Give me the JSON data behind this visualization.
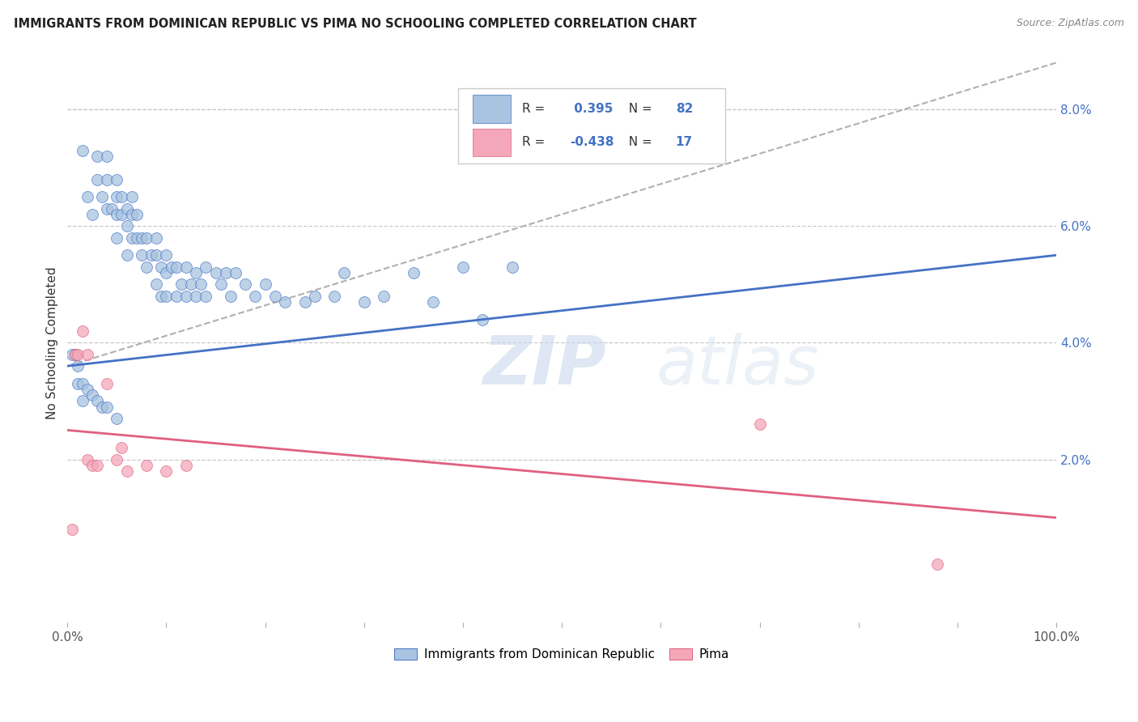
{
  "title": "IMMIGRANTS FROM DOMINICAN REPUBLIC VS PIMA NO SCHOOLING COMPLETED CORRELATION CHART",
  "source": "Source: ZipAtlas.com",
  "ylabel": "No Schooling Completed",
  "ylabel_right_ticks": [
    "2.0%",
    "4.0%",
    "6.0%",
    "8.0%"
  ],
  "ylabel_right_vals": [
    0.02,
    0.04,
    0.06,
    0.08
  ],
  "xlim": [
    0.0,
    1.0
  ],
  "ylim": [
    -0.008,
    0.088
  ],
  "blue_R": 0.395,
  "blue_N": 82,
  "pink_R": -0.438,
  "pink_N": 17,
  "blue_color": "#a8c4e0",
  "pink_color": "#f4a7b9",
  "blue_line_color": "#4472c4",
  "pink_line_color": "#e06080",
  "dashed_line_color": "#b0b0b0",
  "watermark_zip": "ZIP",
  "watermark_atlas": "atlas",
  "blue_scatter_x": [
    0.015,
    0.02,
    0.025,
    0.03,
    0.03,
    0.035,
    0.04,
    0.04,
    0.04,
    0.045,
    0.05,
    0.05,
    0.05,
    0.05,
    0.055,
    0.055,
    0.06,
    0.06,
    0.06,
    0.065,
    0.065,
    0.065,
    0.07,
    0.07,
    0.075,
    0.075,
    0.08,
    0.08,
    0.085,
    0.09,
    0.09,
    0.09,
    0.095,
    0.095,
    0.1,
    0.1,
    0.1,
    0.105,
    0.11,
    0.11,
    0.115,
    0.12,
    0.12,
    0.125,
    0.13,
    0.13,
    0.135,
    0.14,
    0.14,
    0.15,
    0.155,
    0.16,
    0.165,
    0.17,
    0.18,
    0.19,
    0.2,
    0.21,
    0.22,
    0.24,
    0.25,
    0.27,
    0.28,
    0.3,
    0.32,
    0.35,
    0.37,
    0.4,
    0.42,
    0.45,
    0.005,
    0.008,
    0.01,
    0.01,
    0.015,
    0.015,
    0.02,
    0.025,
    0.03,
    0.035,
    0.04,
    0.05
  ],
  "blue_scatter_y": [
    0.073,
    0.065,
    0.062,
    0.072,
    0.068,
    0.065,
    0.072,
    0.068,
    0.063,
    0.063,
    0.068,
    0.065,
    0.062,
    0.058,
    0.065,
    0.062,
    0.063,
    0.06,
    0.055,
    0.065,
    0.062,
    0.058,
    0.062,
    0.058,
    0.058,
    0.055,
    0.058,
    0.053,
    0.055,
    0.058,
    0.055,
    0.05,
    0.053,
    0.048,
    0.055,
    0.052,
    0.048,
    0.053,
    0.053,
    0.048,
    0.05,
    0.053,
    0.048,
    0.05,
    0.052,
    0.048,
    0.05,
    0.053,
    0.048,
    0.052,
    0.05,
    0.052,
    0.048,
    0.052,
    0.05,
    0.048,
    0.05,
    0.048,
    0.047,
    0.047,
    0.048,
    0.048,
    0.052,
    0.047,
    0.048,
    0.052,
    0.047,
    0.053,
    0.044,
    0.053,
    0.038,
    0.038,
    0.036,
    0.033,
    0.033,
    0.03,
    0.032,
    0.031,
    0.03,
    0.029,
    0.029,
    0.027
  ],
  "pink_scatter_x": [
    0.005,
    0.008,
    0.01,
    0.015,
    0.02,
    0.02,
    0.025,
    0.03,
    0.04,
    0.05,
    0.055,
    0.06,
    0.08,
    0.1,
    0.12,
    0.7,
    0.88
  ],
  "pink_scatter_y": [
    0.008,
    0.038,
    0.038,
    0.042,
    0.038,
    0.02,
    0.019,
    0.019,
    0.033,
    0.02,
    0.022,
    0.018,
    0.019,
    0.018,
    0.019,
    0.026,
    0.002
  ],
  "blue_line_x0": 0.0,
  "blue_line_x1": 1.0,
  "blue_line_y0": 0.036,
  "blue_line_y1": 0.055,
  "dashed_line_x0": 0.0,
  "dashed_line_x1": 1.0,
  "dashed_line_y0": 0.036,
  "dashed_line_y1": 0.088,
  "pink_line_x0": 0.0,
  "pink_line_x1": 1.0,
  "pink_line_y0": 0.025,
  "pink_line_y1": 0.01,
  "background_color": "#ffffff",
  "grid_color": "#c8c8c8"
}
